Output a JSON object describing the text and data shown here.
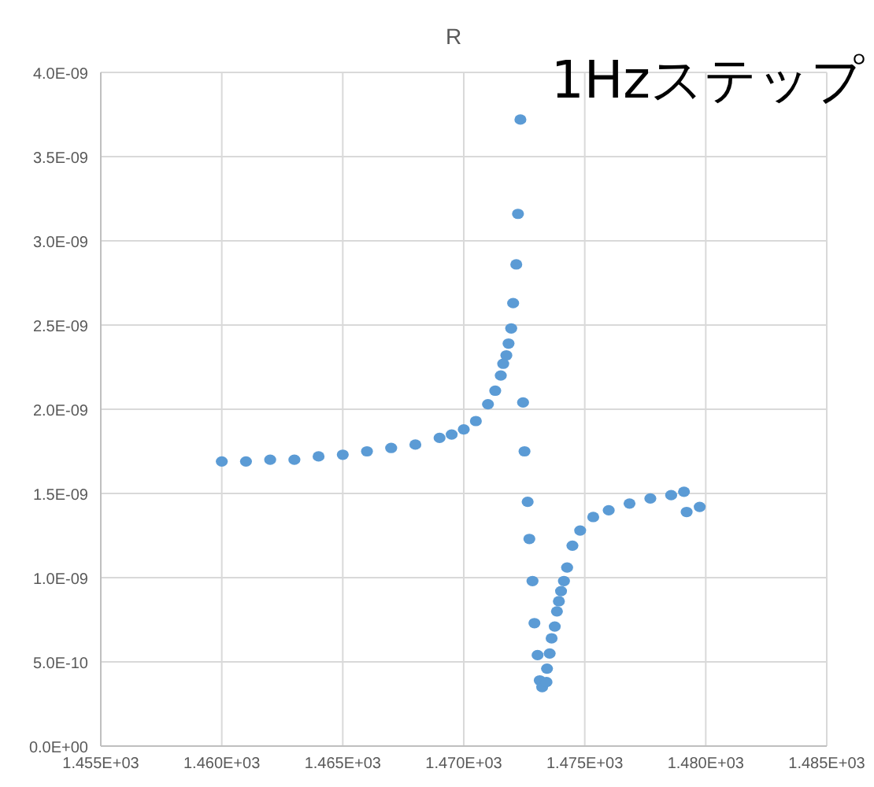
{
  "chart_data": {
    "type": "scatter",
    "title": "R",
    "annotations": [
      "1Hzステップ"
    ],
    "x": [
      1460,
      1461,
      1462,
      1463,
      1464,
      1465,
      1466,
      1467,
      1468,
      1469,
      1469.5,
      1470,
      1470.5,
      1471,
      1471.3,
      1471.53,
      1471.63,
      1471.76,
      1471.85,
      1471.96,
      1472.04,
      1472.17,
      1472.24,
      1472.34,
      1472.45,
      1472.51,
      1472.64,
      1472.71,
      1472.84,
      1472.92,
      1473.05,
      1473.14,
      1473.24,
      1473.42,
      1473.44,
      1473.55,
      1473.63,
      1473.76,
      1473.85,
      1473.93,
      1474.02,
      1474.14,
      1474.27,
      1474.49,
      1474.81,
      1475.35,
      1475.99,
      1476.85,
      1477.71,
      1478.57,
      1479.1,
      1479.21,
      1479.75
    ],
    "series": [
      {
        "color": "#5b9bd5",
        "values": [
          1.69e-09,
          1.69e-09,
          1.7e-09,
          1.7e-09,
          1.72e-09,
          1.73e-09,
          1.75e-09,
          1.77e-09,
          1.79e-09,
          1.83e-09,
          1.85e-09,
          1.88e-09,
          1.93e-09,
          2.03e-09,
          2.11e-09,
          2.2e-09,
          2.27e-09,
          2.32e-09,
          2.39e-09,
          2.48e-09,
          2.63e-09,
          2.86e-09,
          3.16e-09,
          3.72e-09,
          2.04e-09,
          1.75e-09,
          1.45e-09,
          1.23e-09,
          9.8e-10,
          7.3e-10,
          5.4e-10,
          3.9e-10,
          3.5e-10,
          3.8e-10,
          4.6e-10,
          5.5e-10,
          6.4e-10,
          7.1e-10,
          8e-10,
          8.6e-10,
          9.2e-10,
          9.8e-10,
          1.06e-09,
          1.19e-09,
          1.28e-09,
          1.36e-09,
          1.4e-09,
          1.44e-09,
          1.47e-09,
          1.49e-09,
          1.51e-09,
          1.39e-09,
          1.42e-09
        ]
      }
    ],
    "xlim": [
      1455,
      1485
    ],
    "xticks": [
      {
        "value": 1455,
        "label": "1.455E+03"
      },
      {
        "value": 1460,
        "label": "1.460E+03"
      },
      {
        "value": 1465,
        "label": "1.465E+03"
      },
      {
        "value": 1470,
        "label": "1.470E+03"
      },
      {
        "value": 1475,
        "label": "1.475E+03"
      },
      {
        "value": 1480,
        "label": "1.480E+03"
      },
      {
        "value": 1485,
        "label": "1.485E+03"
      }
    ],
    "ylim": [
      0,
      4e-09
    ],
    "yticks": [
      {
        "value": 0,
        "label": "0.0E+00"
      },
      {
        "value": 5e-10,
        "label": "5.0E-10"
      },
      {
        "value": 1e-09,
        "label": "1.0E-09"
      },
      {
        "value": 1.5e-09,
        "label": "1.5E-09"
      },
      {
        "value": 2e-09,
        "label": "2.0E-09"
      },
      {
        "value": 2.5e-09,
        "label": "2.5E-09"
      },
      {
        "value": 3e-09,
        "label": "3.0E-09"
      },
      {
        "value": 3.5e-09,
        "label": "3.5E-09"
      },
      {
        "value": 4e-09,
        "label": "4.0E-09"
      }
    ],
    "grid": true,
    "marker": "circle"
  }
}
